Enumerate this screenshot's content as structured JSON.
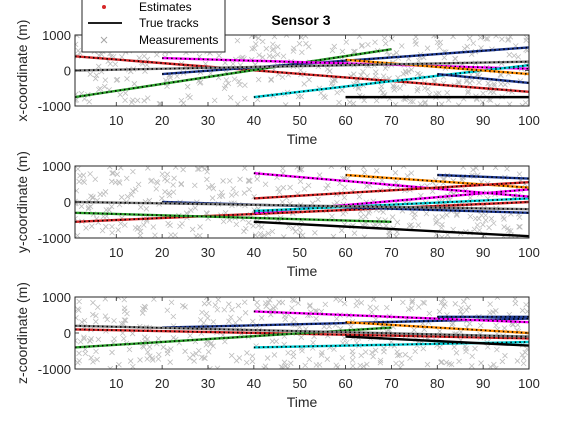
{
  "chart_data": {
    "type": "line",
    "title": "Sensor 3",
    "legend": {
      "placement": "top-left",
      "entries": [
        {
          "name": "Estimates",
          "marker": "dot",
          "color": "#d62728"
        },
        {
          "name": "True tracks",
          "marker": "line",
          "color": "#000000"
        },
        {
          "name": "Measurements",
          "marker": "x",
          "color": "#b3b3b3"
        }
      ]
    },
    "grid": false,
    "track_colors": [
      "#d62728",
      "#2ca02c",
      "#1f3a93",
      "#ff00ff",
      "#00cfd6",
      "#ff8c00",
      "#7f7f7f",
      "#000000"
    ],
    "subplots": [
      {
        "xlabel": "Time",
        "ylabel": "x-coordinate (m)",
        "xlim": [
          1,
          100
        ],
        "ylim": [
          -1000,
          1000
        ],
        "xticks": [
          10,
          20,
          30,
          40,
          50,
          60,
          70,
          80,
          90,
          100
        ],
        "yticks": [
          -1000,
          0,
          1000
        ],
        "series": [
          {
            "color": "#d62728",
            "x": [
              1,
              100
            ],
            "y": [
              400,
              -600
            ]
          },
          {
            "color": "#2ca02c",
            "x": [
              1,
              70
            ],
            "y": [
              -750,
              600
            ]
          },
          {
            "color": "#1f3a93",
            "x": [
              20,
              100
            ],
            "y": [
              -100,
              650
            ]
          },
          {
            "color": "#ff00ff",
            "x": [
              20,
              100
            ],
            "y": [
              350,
              50
            ]
          },
          {
            "color": "#00cfd6",
            "x": [
              40,
              100
            ],
            "y": [
              -750,
              150
            ]
          },
          {
            "color": "#ff8c00",
            "x": [
              60,
              100
            ],
            "y": [
              300,
              -100
            ]
          },
          {
            "color": "#7f7f7f",
            "x": [
              1,
              100
            ],
            "y": [
              0,
              250
            ]
          },
          {
            "color": "#000000",
            "x": [
              60,
              100
            ],
            "y": [
              -750,
              -750
            ]
          },
          {
            "color": "#1f3a93",
            "x": [
              80,
              100
            ],
            "y": [
              -100,
              -350
            ]
          }
        ]
      },
      {
        "xlabel": "Time",
        "ylabel": "y-coordinate (m)",
        "xlim": [
          1,
          100
        ],
        "ylim": [
          -1000,
          1000
        ],
        "xticks": [
          10,
          20,
          30,
          40,
          50,
          60,
          70,
          80,
          90,
          100
        ],
        "yticks": [
          -1000,
          0,
          1000
        ],
        "series": [
          {
            "color": "#d62728",
            "x": [
              1,
              100
            ],
            "y": [
              -550,
              0
            ]
          },
          {
            "color": "#2ca02c",
            "x": [
              1,
              70
            ],
            "y": [
              -300,
              -550
            ]
          },
          {
            "color": "#1f3a93",
            "x": [
              20,
              100
            ],
            "y": [
              0,
              -300
            ]
          },
          {
            "color": "#ff00ff",
            "x": [
              40,
              100
            ],
            "y": [
              -300,
              350
            ]
          },
          {
            "color": "#00cfd6",
            "x": [
              40,
              100
            ],
            "y": [
              -250,
              100
            ]
          },
          {
            "color": "#ff8c00",
            "x": [
              60,
              100
            ],
            "y": [
              750,
              400
            ]
          },
          {
            "color": "#7f7f7f",
            "x": [
              1,
              100
            ],
            "y": [
              0,
              -200
            ]
          },
          {
            "color": "#000000",
            "x": [
              40,
              100
            ],
            "y": [
              -550,
              -950
            ]
          },
          {
            "color": "#ff00ff",
            "x": [
              40,
              100
            ],
            "y": [
              800,
              150
            ]
          },
          {
            "color": "#1f3a93",
            "x": [
              80,
              100
            ],
            "y": [
              750,
              650
            ]
          },
          {
            "color": "#d62728",
            "x": [
              40,
              100
            ],
            "y": [
              100,
              550
            ]
          }
        ]
      },
      {
        "xlabel": "Time",
        "ylabel": "z-coordinate (m)",
        "xlim": [
          1,
          100
        ],
        "ylim": [
          -1000,
          1000
        ],
        "xticks": [
          10,
          20,
          30,
          40,
          50,
          60,
          70,
          80,
          90,
          100
        ],
        "yticks": [
          -1000,
          0,
          1000
        ],
        "series": [
          {
            "color": "#d62728",
            "x": [
              1,
              100
            ],
            "y": [
              100,
              -150
            ]
          },
          {
            "color": "#2ca02c",
            "x": [
              1,
              70
            ],
            "y": [
              -400,
              150
            ]
          },
          {
            "color": "#1f3a93",
            "x": [
              20,
              100
            ],
            "y": [
              150,
              400
            ]
          },
          {
            "color": "#ff00ff",
            "x": [
              40,
              100
            ],
            "y": [
              600,
              300
            ]
          },
          {
            "color": "#00cfd6",
            "x": [
              40,
              100
            ],
            "y": [
              -400,
              -250
            ]
          },
          {
            "color": "#ff8c00",
            "x": [
              60,
              100
            ],
            "y": [
              300,
              0
            ]
          },
          {
            "color": "#7f7f7f",
            "x": [
              1,
              100
            ],
            "y": [
              200,
              -100
            ]
          },
          {
            "color": "#000000",
            "x": [
              60,
              100
            ],
            "y": [
              -100,
              -350
            ]
          },
          {
            "color": "#1f3a93",
            "x": [
              80,
              100
            ],
            "y": [
              450,
              450
            ]
          }
        ]
      }
    ]
  }
}
